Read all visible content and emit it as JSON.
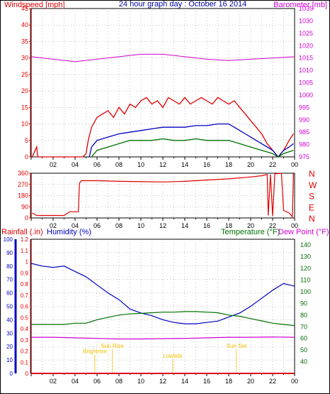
{
  "header": {
    "wind_label": "Windspeed [mph]",
    "title": "24 hour graph day : October 16 2014",
    "baro_label": "Barometer [mb]"
  },
  "labels": {
    "rainfall": "Rainfall (.in)",
    "humidity": "Humidity (%)",
    "temperature": "Temperature (°F)",
    "dewpoint": "Dew Point (°F)"
  },
  "colors": {
    "red": "#e00000",
    "blue": "#0000c0",
    "green": "#007000",
    "magenta": "#d000d0",
    "annotation": "#f0c000",
    "grid": "#888888",
    "background": "#ffffff"
  },
  "chart_data": [
    {
      "type": "line",
      "title": "24 hour graph day : October 16 2014",
      "x_ticks": [
        "02",
        "04",
        "06",
        "08",
        "10",
        "12",
        "14",
        "16",
        "18",
        "20",
        "22",
        "00"
      ],
      "y_left": {
        "label": "Windspeed [mph]",
        "range": [
          0,
          45
        ],
        "ticks": [
          "0",
          "5",
          "10",
          "15",
          "20",
          "25",
          "30",
          "35",
          "40",
          "45"
        ]
      },
      "y_right": {
        "label": "Barometer [mb]",
        "range": [
          975,
          1035
        ],
        "ticks": [
          "975",
          "980",
          "985",
          "990",
          "995",
          "1000",
          "1005",
          "1010",
          "1015",
          "1020",
          "1025",
          "1030",
          "1035"
        ]
      },
      "grid": true,
      "series": [
        {
          "color": "#e00000",
          "points": [
            [
              0.1,
              0
            ],
            [
              0.5,
              3
            ],
            [
              0.6,
              0
            ],
            [
              4.0,
              0
            ],
            [
              4.7,
              0
            ],
            [
              5.0,
              1
            ],
            [
              5.2,
              5
            ],
            [
              5.5,
              9
            ],
            [
              6.0,
              12
            ],
            [
              6.5,
              13
            ],
            [
              7.0,
              14
            ],
            [
              7.5,
              12
            ],
            [
              8.0,
              15
            ],
            [
              8.5,
              13
            ],
            [
              9.0,
              16
            ],
            [
              9.5,
              15
            ],
            [
              10.0,
              17
            ],
            [
              10.5,
              18
            ],
            [
              11.0,
              16
            ],
            [
              11.5,
              17
            ],
            [
              12.0,
              15
            ],
            [
              12.5,
              18
            ],
            [
              13.0,
              17
            ],
            [
              13.5,
              16
            ],
            [
              14.0,
              18
            ],
            [
              14.5,
              16
            ],
            [
              15.0,
              17
            ],
            [
              15.5,
              18
            ],
            [
              16.0,
              17
            ],
            [
              16.5,
              16
            ],
            [
              17.0,
              18
            ],
            [
              17.5,
              17
            ],
            [
              18.0,
              16
            ],
            [
              18.5,
              17
            ],
            [
              19.0,
              15
            ],
            [
              19.5,
              13
            ],
            [
              20.0,
              11
            ],
            [
              20.5,
              9
            ],
            [
              21.0,
              7
            ],
            [
              21.5,
              4
            ],
            [
              22.0,
              2
            ],
            [
              22.5,
              0
            ],
            [
              23.0,
              2
            ],
            [
              23.5,
              5
            ],
            [
              23.9,
              7
            ]
          ]
        },
        {
          "color": "#0000c0",
          "points": [
            [
              5.3,
              0
            ],
            [
              5.5,
              3
            ],
            [
              6.0,
              5
            ],
            [
              7.0,
              6
            ],
            [
              8.0,
              7
            ],
            [
              9.0,
              7.5
            ],
            [
              10.0,
              8
            ],
            [
              11.0,
              8.5
            ],
            [
              12.0,
              9
            ],
            [
              13.0,
              9
            ],
            [
              14.0,
              9
            ],
            [
              15.0,
              9.5
            ],
            [
              16.0,
              9.5
            ],
            [
              17.0,
              10
            ],
            [
              18.0,
              10
            ],
            [
              18.5,
              9
            ],
            [
              19.0,
              8
            ],
            [
              19.5,
              7
            ],
            [
              20.0,
              6
            ],
            [
              20.5,
              5
            ],
            [
              21.0,
              4
            ],
            [
              21.5,
              3
            ],
            [
              22.0,
              2
            ],
            [
              22.5,
              0
            ],
            [
              23.0,
              2
            ],
            [
              23.5,
              3
            ],
            [
              23.9,
              4
            ]
          ]
        },
        {
          "color": "#007000",
          "points": [
            [
              5.5,
              0
            ],
            [
              6.0,
              2
            ],
            [
              7.0,
              3
            ],
            [
              8.0,
              4
            ],
            [
              9.0,
              5
            ],
            [
              10.0,
              5
            ],
            [
              11.0,
              5
            ],
            [
              12.0,
              5.5
            ],
            [
              13.0,
              5
            ],
            [
              14.0,
              5
            ],
            [
              15.0,
              5.5
            ],
            [
              16.0,
              5
            ],
            [
              17.0,
              5
            ],
            [
              18.0,
              5
            ],
            [
              19.0,
              4
            ],
            [
              20.0,
              3
            ],
            [
              21.0,
              2
            ],
            [
              22.0,
              1
            ],
            [
              22.5,
              0
            ],
            [
              23.0,
              1
            ],
            [
              23.9,
              2
            ]
          ]
        },
        {
          "color": "#d000d0",
          "axis": "right",
          "points": [
            [
              0,
              1015.5
            ],
            [
              2,
              1014.5
            ],
            [
              4,
              1013.5
            ],
            [
              6,
              1014.5
            ],
            [
              8,
              1015.5
            ],
            [
              10,
              1016.5
            ],
            [
              12,
              1016.5
            ],
            [
              14,
              1015.5
            ],
            [
              16,
              1014.5
            ],
            [
              18,
              1014
            ],
            [
              20,
              1014.5
            ],
            [
              22,
              1015
            ],
            [
              24,
              1015.5
            ]
          ]
        }
      ]
    },
    {
      "type": "line",
      "y_left": {
        "range": [
          0,
          360
        ],
        "ticks": [
          "0",
          "90",
          "180",
          "270",
          "360"
        ]
      },
      "y_right_ticks": [
        "N",
        "W",
        "S",
        "E",
        "N"
      ],
      "grid": true,
      "series": [
        {
          "color": "#e00000",
          "points": [
            [
              0.1,
              40
            ],
            [
              0.5,
              20
            ],
            [
              1.0,
              20
            ],
            [
              3.0,
              20
            ],
            [
              3.5,
              50
            ],
            [
              4.3,
              50
            ],
            [
              4.4,
              280
            ],
            [
              4.6,
              300
            ],
            [
              6.0,
              300
            ],
            [
              8.0,
              295
            ],
            [
              10.0,
              292
            ],
            [
              12.0,
              290
            ],
            [
              14.0,
              295
            ],
            [
              16.0,
              305
            ],
            [
              18.0,
              315
            ],
            [
              20.0,
              330
            ],
            [
              21.0,
              340
            ],
            [
              21.5,
              350
            ],
            [
              21.6,
              20
            ],
            [
              21.8,
              350
            ],
            [
              22.0,
              15
            ],
            [
              22.2,
              355
            ],
            [
              22.8,
              360
            ],
            [
              23.0,
              60
            ],
            [
              23.5,
              40
            ],
            [
              23.8,
              10
            ],
            [
              23.9,
              360
            ]
          ]
        }
      ]
    },
    {
      "type": "line",
      "y_rain": {
        "label": "Rainfall (.in)",
        "range": [
          0,
          1.2
        ],
        "ticks": [
          "0",
          "0.1",
          "0.2",
          "0.3",
          "0.4",
          "0.5",
          "0.6",
          "0.7",
          "0.8",
          "0.9",
          "1",
          "1.1",
          "1.2"
        ]
      },
      "y_humidity": {
        "label": "Humidity (%)",
        "range": [
          0,
          100
        ],
        "ticks": [
          "0",
          "10",
          "20",
          "30",
          "40",
          "50",
          "60",
          "70",
          "80",
          "90",
          "100"
        ]
      },
      "y_temp": {
        "label": "Temperature (°F)",
        "range": [
          30,
          145
        ],
        "ticks": [
          "40",
          "50",
          "60",
          "70",
          "80",
          "90",
          "100",
          "110",
          "120",
          "130",
          "140"
        ]
      },
      "annotations": [
        "Brightrise",
        "Sun Rise",
        "Lowtide",
        "Sun Set"
      ],
      "grid": true,
      "series": [
        {
          "color": "#0000c0",
          "points": [
            [
              0,
              82
            ],
            [
              1,
              80
            ],
            [
              2,
              79
            ],
            [
              3,
              80
            ],
            [
              4,
              76
            ],
            [
              5,
              72
            ],
            [
              6,
              66
            ],
            [
              7,
              60
            ],
            [
              8,
              55
            ],
            [
              9,
              48
            ],
            [
              10,
              45
            ],
            [
              11,
              43
            ],
            [
              12,
              40
            ],
            [
              13,
              38
            ],
            [
              14,
              37
            ],
            [
              15,
              37
            ],
            [
              16,
              38
            ],
            [
              17,
              39
            ],
            [
              18,
              42
            ],
            [
              19,
              45
            ],
            [
              20,
              50
            ],
            [
              21,
              56
            ],
            [
              22,
              62
            ],
            [
              23,
              67
            ],
            [
              24,
              65
            ]
          ]
        },
        {
          "color": "#007000",
          "points": [
            [
              0,
              72
            ],
            [
              1,
              72
            ],
            [
              2,
              72
            ],
            [
              3,
              72
            ],
            [
              4,
              73
            ],
            [
              5,
              73
            ],
            [
              6,
              76
            ],
            [
              7,
              78
            ],
            [
              8,
              80
            ],
            [
              9,
              81
            ],
            [
              10,
              81.5
            ],
            [
              11,
              82
            ],
            [
              12,
              82.5
            ],
            [
              13,
              82.5
            ],
            [
              14,
              83
            ],
            [
              15,
              83
            ],
            [
              16,
              82.5
            ],
            [
              17,
              82
            ],
            [
              18,
              80
            ],
            [
              19,
              79
            ],
            [
              20,
              77
            ],
            [
              21,
              75
            ],
            [
              22,
              73
            ],
            [
              23,
              72
            ],
            [
              24,
              71
            ]
          ]
        },
        {
          "color": "#d000d0",
          "points": [
            [
              0,
              61
            ],
            [
              2,
              61
            ],
            [
              4,
              60.5
            ],
            [
              6,
              60
            ],
            [
              8,
              59.5
            ],
            [
              10,
              59.5
            ],
            [
              12,
              59.8
            ],
            [
              14,
              60
            ],
            [
              16,
              60.5
            ],
            [
              18,
              61
            ],
            [
              20,
              61
            ],
            [
              22,
              61.2
            ],
            [
              24,
              61
            ]
          ]
        },
        {
          "color": "#e00000",
          "points": [
            [
              0,
              0
            ],
            [
              24,
              0
            ]
          ]
        }
      ]
    }
  ]
}
